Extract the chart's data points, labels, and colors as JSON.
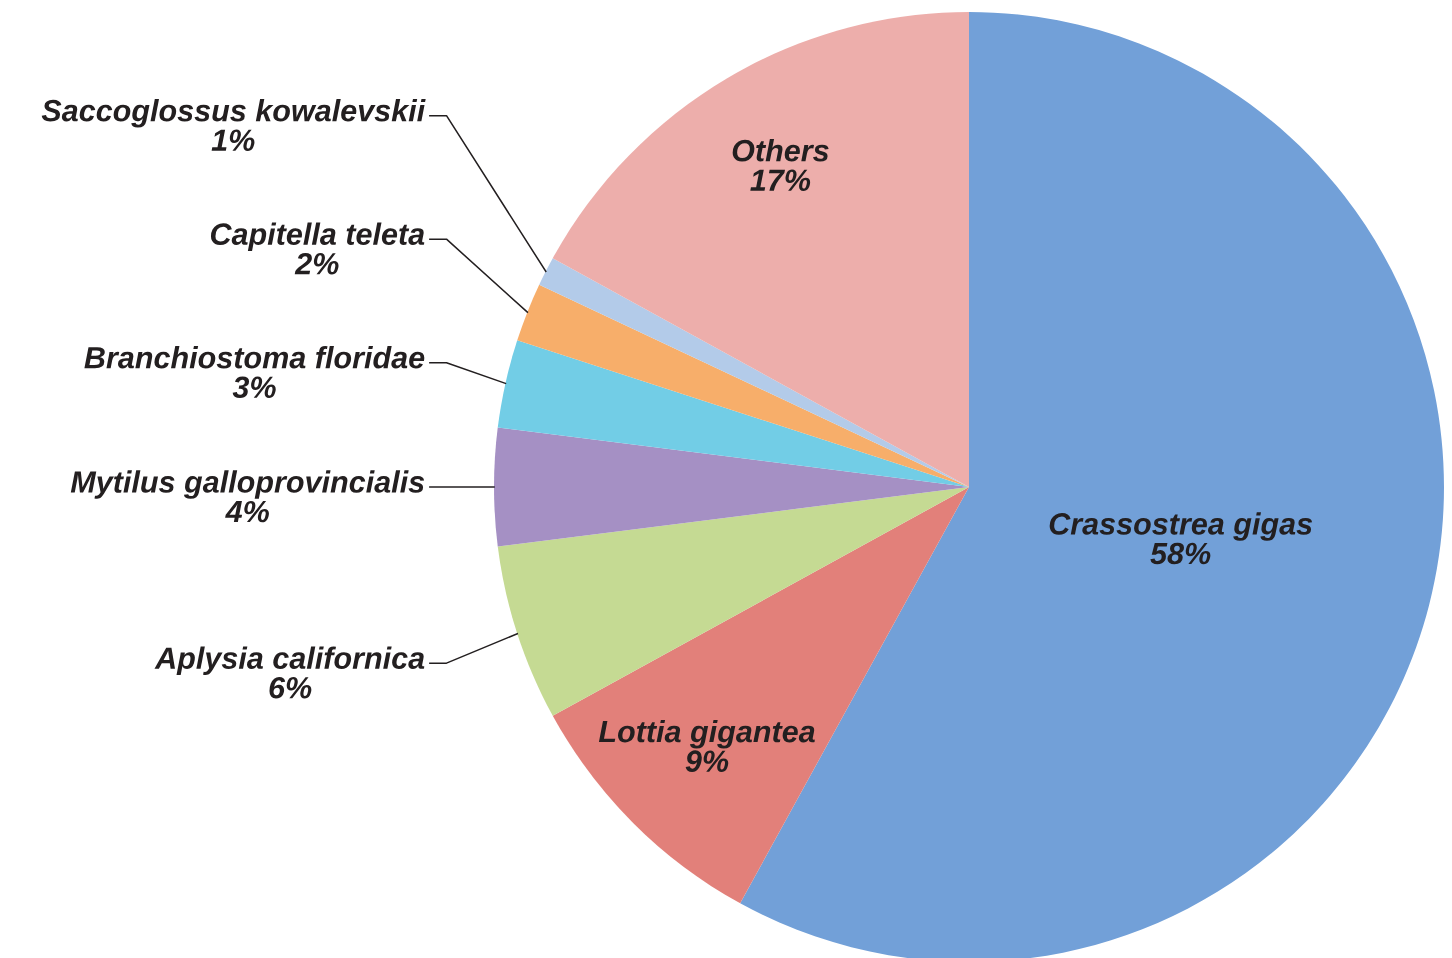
{
  "chart_data": {
    "type": "pie",
    "categories": [
      "Crassostrea gigas",
      "Lottia gigantea",
      "Aplysia californica",
      "Mytilus galloprovincialis",
      "Branchiostoma floridae",
      "Capitella teleta",
      "Saccoglossus kowalevskii",
      "Others"
    ],
    "values": [
      58,
      9,
      6,
      4,
      3,
      2,
      1,
      17
    ],
    "value_labels": [
      "58%",
      "9%",
      "6%",
      "4%",
      "3%",
      "2%",
      "1%",
      "17%"
    ],
    "colors": [
      "#72a0d8",
      "#e2807a",
      "#c5da93",
      "#a590c4",
      "#72cde6",
      "#f7ae6a",
      "#b3cbe9",
      "#edaeab"
    ]
  }
}
